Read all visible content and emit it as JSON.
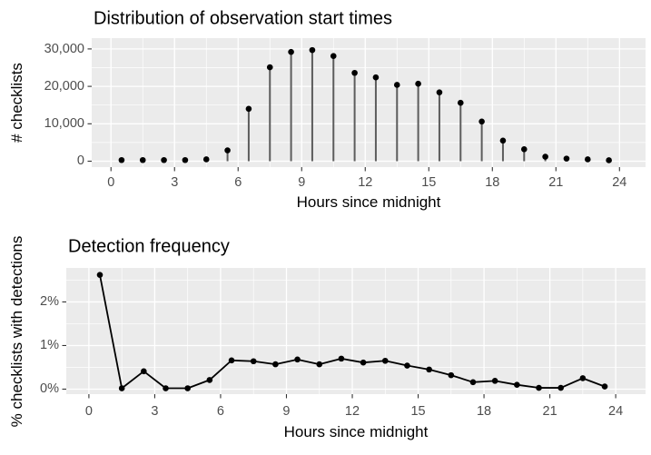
{
  "figure": {
    "background": "#ffffff"
  },
  "chart_data": [
    {
      "type": "scatter",
      "style": "lollipop",
      "title": "Distribution of observation start times",
      "xlabel": "Hours since midnight",
      "ylabel": "# checklists",
      "x": [
        0.5,
        1.5,
        2.5,
        3.5,
        4.5,
        5.5,
        6.5,
        7.5,
        8.5,
        9.5,
        10.5,
        11.5,
        12.5,
        13.5,
        14.5,
        15.5,
        16.5,
        17.5,
        18.5,
        19.5,
        20.5,
        21.5,
        22.5,
        23.5
      ],
      "y": [
        300,
        300,
        300,
        300,
        500,
        2900,
        14000,
        25100,
        29200,
        29700,
        28100,
        23600,
        22400,
        20400,
        20700,
        18400,
        15600,
        10600,
        5500,
        3200,
        1200,
        700,
        500,
        250
      ],
      "xlim": [
        -0.91,
        25.23
      ],
      "ylim": [
        -1578,
        32886
      ],
      "x_ticks": [
        0,
        3,
        6,
        9,
        12,
        15,
        18,
        21,
        24
      ],
      "x_tick_labels": [
        "0",
        "3",
        "6",
        "9",
        "12",
        "15",
        "18",
        "21",
        "24"
      ],
      "x_minor_ticks": [
        1.5,
        4.5,
        7.5,
        10.5,
        13.5,
        16.5,
        19.5,
        22.5
      ],
      "y_ticks": [
        0,
        10000,
        20000,
        30000
      ],
      "y_tick_labels": [
        "0",
        "10,000",
        "20,000",
        "30,000"
      ],
      "y_minor_ticks": [
        5000,
        15000,
        25000
      ],
      "grid": "major+minor horizontal+vertical",
      "legend": "none",
      "colors": {
        "panel": "#ebebeb",
        "grid": "#ffffff",
        "point": "#000000",
        "stem": "#5c5c5c",
        "tick_text": "#4d4d4d",
        "tick_mark": "#333333",
        "title_text": "#000000"
      }
    },
    {
      "type": "line",
      "style": "line+points",
      "title": "Detection frequency",
      "xlabel": "Hours since midnight",
      "ylabel": "% checklists with detections",
      "x": [
        0.5,
        1.5,
        2.5,
        3.5,
        4.5,
        5.5,
        6.5,
        7.5,
        8.5,
        9.5,
        10.5,
        11.5,
        12.5,
        13.5,
        14.5,
        15.5,
        16.5,
        17.5,
        18.5,
        19.5,
        20.5,
        21.5,
        22.5,
        23.5
      ],
      "y": [
        2.62,
        0.02,
        0.41,
        0.02,
        0.02,
        0.21,
        0.66,
        0.64,
        0.57,
        0.68,
        0.57,
        0.7,
        0.61,
        0.65,
        0.54,
        0.45,
        0.32,
        0.16,
        0.19,
        0.1,
        0.03,
        0.03,
        0.25,
        0.06
      ],
      "xlim": [
        -1.03,
        25.36
      ],
      "ylim": [
        -0.115,
        2.78
      ],
      "x_ticks": [
        0,
        3,
        6,
        9,
        12,
        15,
        18,
        21,
        24
      ],
      "x_tick_labels": [
        "0",
        "3",
        "6",
        "9",
        "12",
        "15",
        "18",
        "21",
        "24"
      ],
      "x_minor_ticks": [
        1.5,
        4.5,
        7.5,
        10.5,
        13.5,
        16.5,
        19.5,
        22.5
      ],
      "y_ticks": [
        0,
        1,
        2
      ],
      "y_tick_labels": [
        "0%",
        "1%",
        "2%"
      ],
      "y_minor_ticks": [
        0.5,
        1.5,
        2.5
      ],
      "grid": "major+minor horizontal+vertical",
      "legend": "none",
      "colors": {
        "panel": "#ebebeb",
        "grid": "#ffffff",
        "point": "#000000",
        "line": "#000000",
        "tick_text": "#4d4d4d",
        "tick_mark": "#333333",
        "title_text": "#000000"
      }
    }
  ]
}
